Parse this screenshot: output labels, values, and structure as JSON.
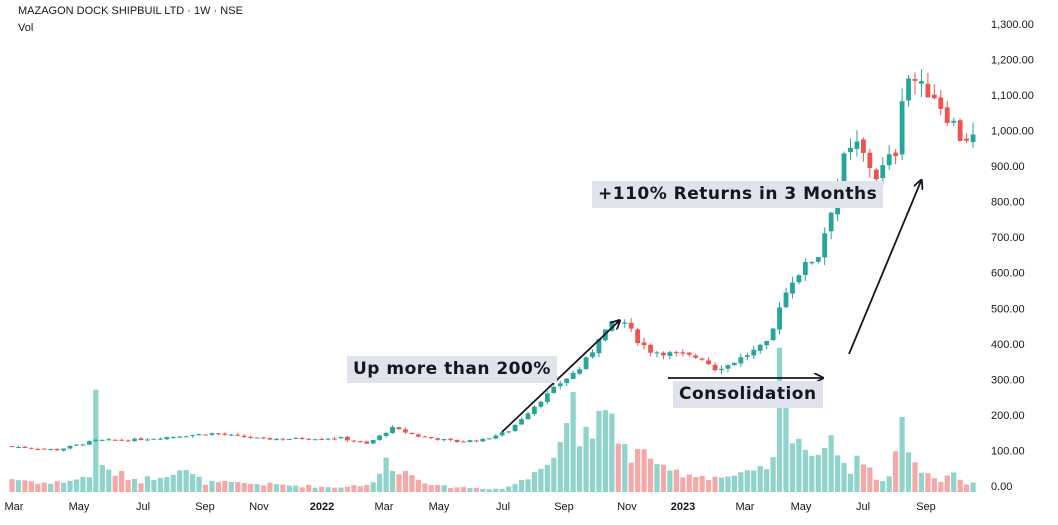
{
  "header": {
    "symbol_line": "MAZAGON DOCK SHIPBUIL LTD · 1W · NSE",
    "volume_label": "Vol"
  },
  "annotations": {
    "returns": "+110% Returns in 3 Months",
    "up_200": "Up more than 200%",
    "consolidation": "Consolidation"
  },
  "colors": {
    "up": "#26a69a",
    "down": "#ef5350",
    "vol_up": "#8fd3cb",
    "vol_down": "#f4a9a8",
    "axis_text": "#131722",
    "annotation_bg": "#e0e3eb"
  },
  "chart_data": {
    "type": "candlestick",
    "interval": "1W",
    "exchange": "NSE",
    "ylim": [
      0,
      1300
    ],
    "y_ticks": [
      "1,300.00",
      "1,200.00",
      "1,100.00",
      "1,000.00",
      "900.00",
      "800.00",
      "700.00",
      "600.00",
      "500.00",
      "400.00",
      "300.00",
      "200.00",
      "100.00",
      "0.00"
    ],
    "x_ticks": [
      {
        "label": "Mar",
        "date": "2021-03"
      },
      {
        "label": "May",
        "date": "2021-05"
      },
      {
        "label": "Jul",
        "date": "2021-07"
      },
      {
        "label": "Sep",
        "date": "2021-09"
      },
      {
        "label": "Nov",
        "date": "2021-11"
      },
      {
        "label": "2022",
        "date": "2022-01"
      },
      {
        "label": "Mar",
        "date": "2022-03"
      },
      {
        "label": "May",
        "date": "2022-05"
      },
      {
        "label": "Jul",
        "date": "2022-07"
      },
      {
        "label": "Sep",
        "date": "2022-09"
      },
      {
        "label": "Nov",
        "date": "2022-11"
      },
      {
        "label": "2023",
        "date": "2023-01"
      },
      {
        "label": "Mar",
        "date": "2023-03"
      },
      {
        "label": "May",
        "date": "2023-05"
      },
      {
        "label": "Jul",
        "date": "2023-07"
      },
      {
        "label": "Sep",
        "date": "2023-09"
      }
    ],
    "price_keypoints": [
      [
        0,
        112
      ],
      [
        8,
        102
      ],
      [
        14,
        128
      ],
      [
        20,
        130
      ],
      [
        32,
        148
      ],
      [
        40,
        132
      ],
      [
        52,
        135
      ],
      [
        56,
        118
      ],
      [
        60,
        163
      ],
      [
        64,
        140
      ],
      [
        70,
        125
      ],
      [
        74,
        130
      ],
      [
        78,
        155
      ],
      [
        82,
        225
      ],
      [
        86,
        290
      ],
      [
        89,
        330
      ],
      [
        91,
        380
      ],
      [
        92,
        420
      ],
      [
        94,
        455
      ],
      [
        96,
        460
      ],
      [
        98,
        410
      ],
      [
        100,
        380
      ],
      [
        104,
        370
      ],
      [
        108,
        360
      ],
      [
        110,
        330
      ],
      [
        112,
        340
      ],
      [
        116,
        380
      ],
      [
        118,
        400
      ],
      [
        119,
        440
      ],
      [
        120,
        510
      ],
      [
        122,
        580
      ],
      [
        124,
        620
      ],
      [
        126,
        650
      ],
      [
        128,
        780
      ],
      [
        130,
        920
      ],
      [
        132,
        960
      ],
      [
        134,
        900
      ],
      [
        135,
        870
      ],
      [
        137,
        920
      ],
      [
        138,
        940
      ],
      [
        139,
        1100
      ],
      [
        140,
        1150
      ],
      [
        141,
        1140
      ],
      [
        142,
        1120
      ],
      [
        143,
        1110
      ],
      [
        144,
        1100
      ],
      [
        146,
        1040
      ],
      [
        147,
        1020
      ],
      [
        148,
        980
      ]
    ],
    "volume_keypoints": [
      [
        0,
        35
      ],
      [
        6,
        22
      ],
      [
        12,
        40
      ],
      [
        13,
        310
      ],
      [
        14,
        60
      ],
      [
        20,
        30
      ],
      [
        26,
        60
      ],
      [
        30,
        25
      ],
      [
        40,
        20
      ],
      [
        50,
        12
      ],
      [
        56,
        22
      ],
      [
        58,
        80
      ],
      [
        60,
        60
      ],
      [
        66,
        15
      ],
      [
        76,
        8
      ],
      [
        80,
        35
      ],
      [
        82,
        80
      ],
      [
        84,
        100
      ],
      [
        86,
        175
      ],
      [
        87,
        270
      ],
      [
        88,
        160
      ],
      [
        90,
        120
      ],
      [
        92,
        240
      ],
      [
        94,
        160
      ],
      [
        96,
        70
      ],
      [
        98,
        130
      ],
      [
        100,
        60
      ],
      [
        104,
        50
      ],
      [
        108,
        40
      ],
      [
        112,
        40
      ],
      [
        116,
        55
      ],
      [
        118,
        80
      ],
      [
        119,
        330
      ],
      [
        120,
        200
      ],
      [
        121,
        170
      ],
      [
        123,
        120
      ],
      [
        125,
        80
      ],
      [
        127,
        190
      ],
      [
        128,
        100
      ],
      [
        130,
        60
      ],
      [
        132,
        95
      ],
      [
        134,
        30
      ],
      [
        136,
        40
      ],
      [
        138,
        170
      ],
      [
        139,
        125
      ],
      [
        140,
        70
      ],
      [
        144,
        30
      ],
      [
        146,
        55
      ],
      [
        148,
        20
      ]
    ]
  }
}
